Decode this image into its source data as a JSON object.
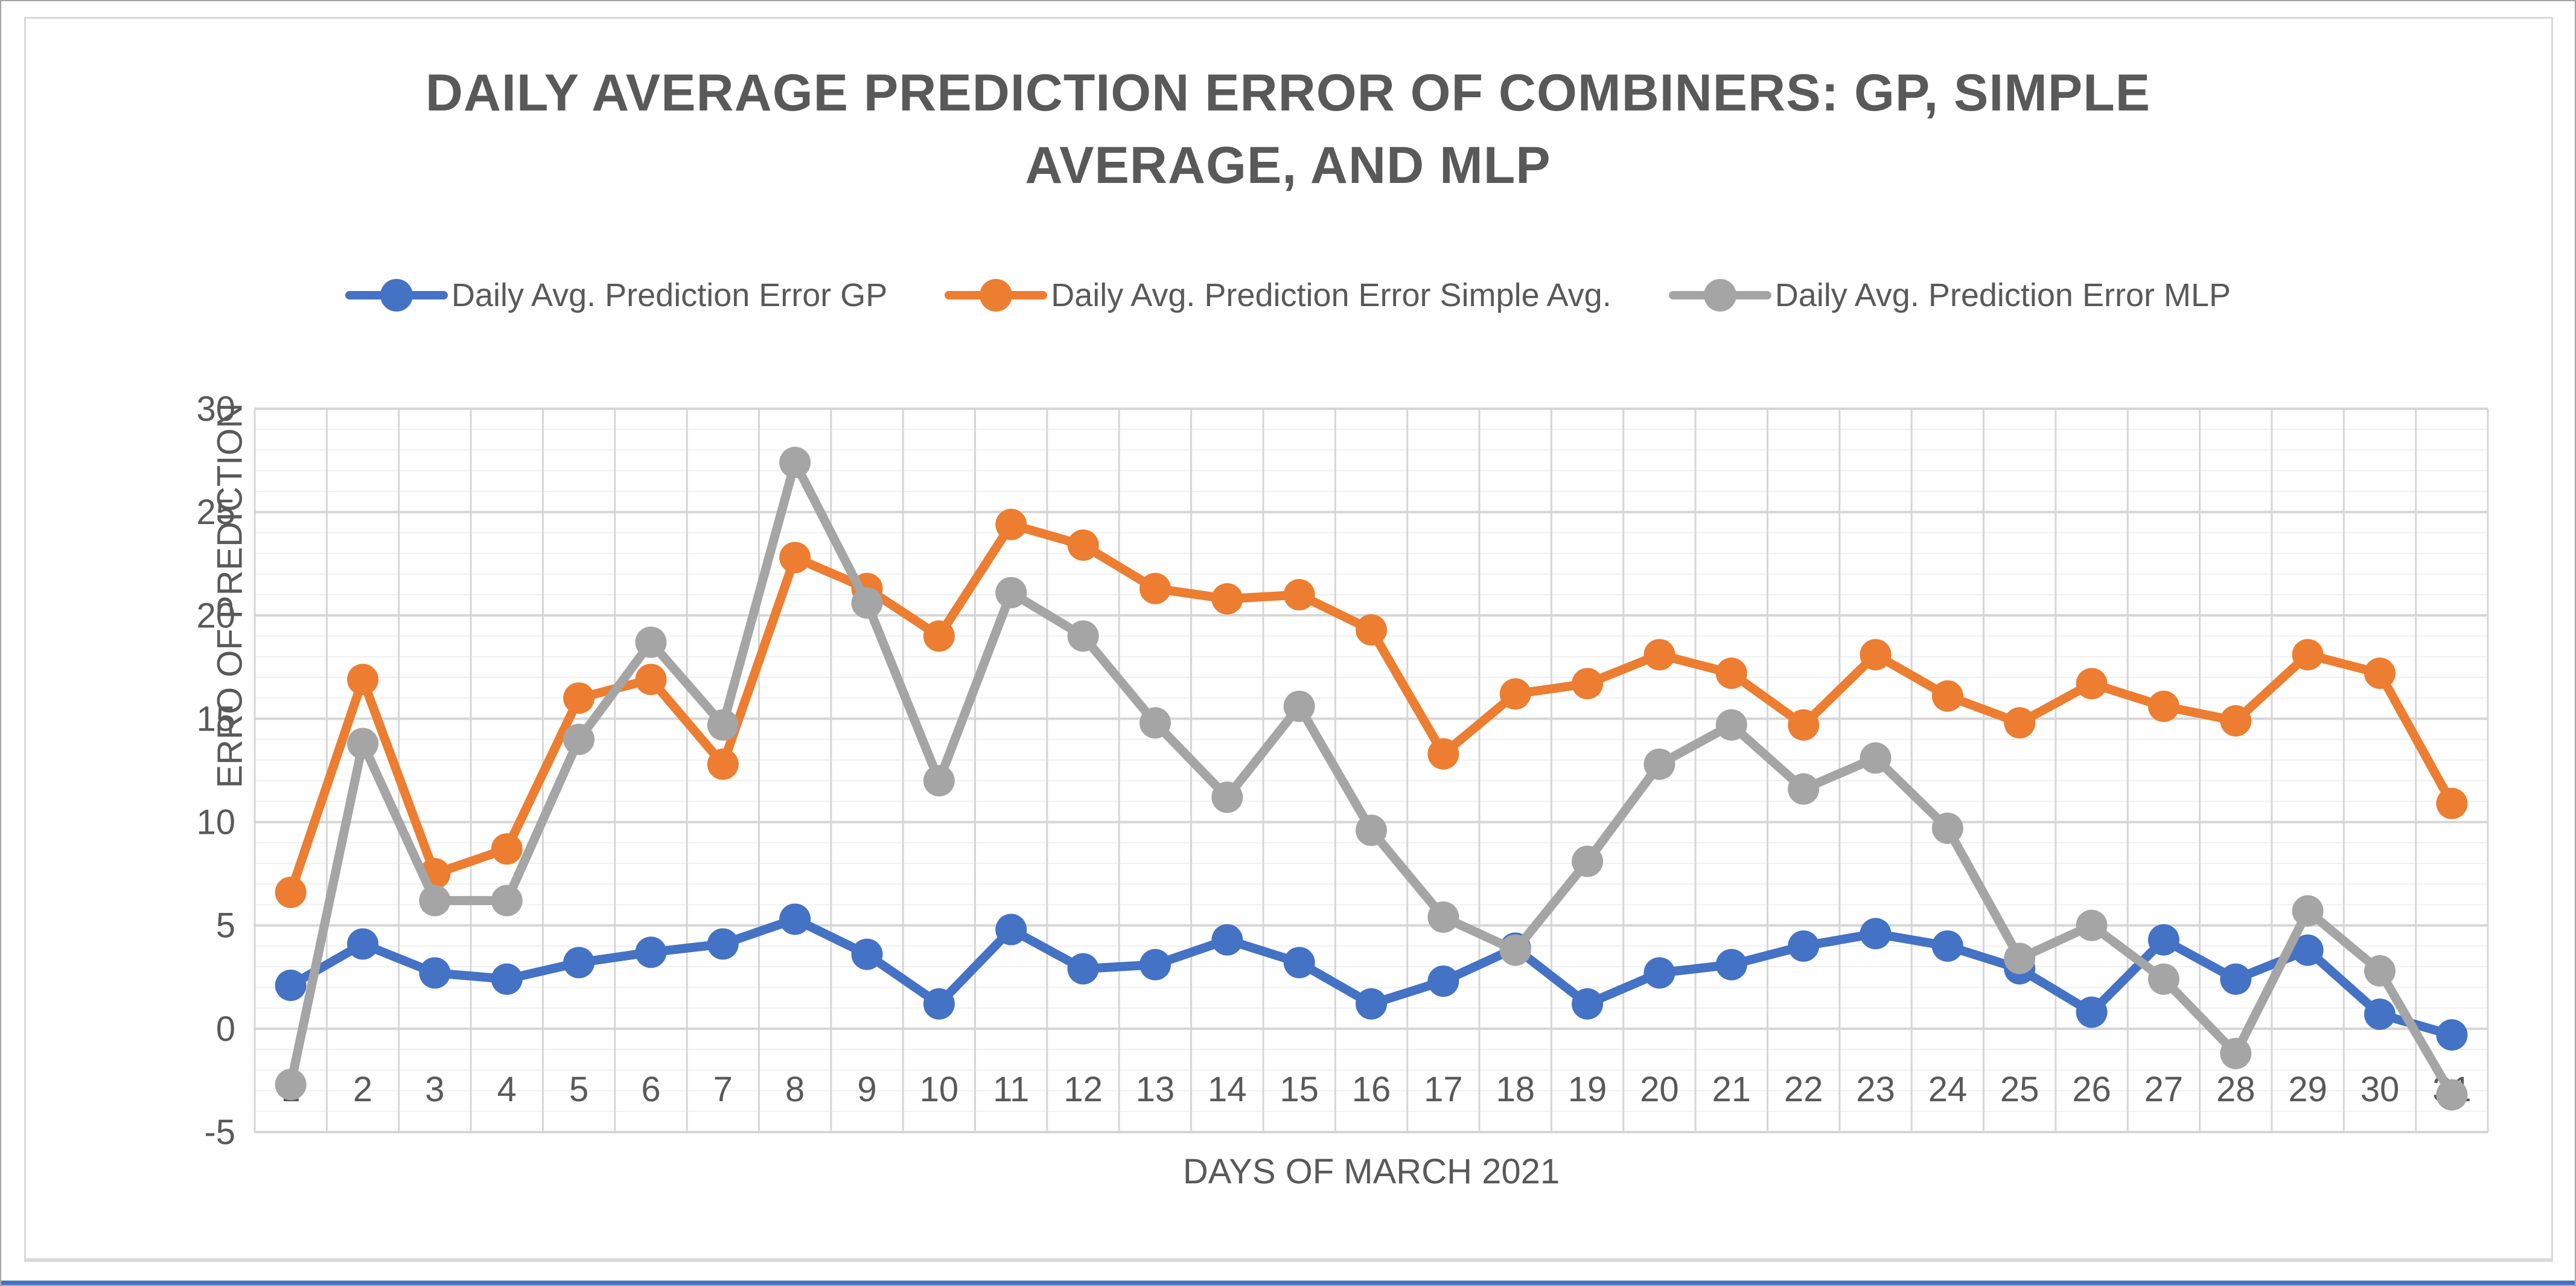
{
  "page": {
    "background": "#ffffff",
    "outer_border_color": "#a6a6a6",
    "frame_border_color": "#d9d9d9",
    "bottom_strip_color": "#4472c4",
    "text_color": "#595959"
  },
  "chart_data": {
    "type": "line",
    "title": "DAILY AVERAGE PREDICTION ERROR OF COMBINERS: GP, SIMPLE AVERAGE, AND MLP",
    "xlabel": "DAYS OF MARCH 2021",
    "ylabel": "ERRO OF PREDICTION",
    "x": [
      1,
      2,
      3,
      4,
      5,
      6,
      7,
      8,
      9,
      10,
      11,
      12,
      13,
      14,
      15,
      16,
      17,
      18,
      19,
      20,
      21,
      22,
      23,
      24,
      25,
      26,
      27,
      28,
      29,
      30,
      31
    ],
    "ylim": [
      -5,
      30
    ],
    "yticks": [
      30,
      25,
      20,
      15,
      10,
      5,
      0,
      -5
    ],
    "ytick_minor_step": 1,
    "grid": true,
    "legend_position": "top",
    "gridline_major_color": "#d6d6d6",
    "gridline_minor_color": "#f0f0f0",
    "tick_label_color": "#595959",
    "series": [
      {
        "name": "Daily Avg. Prediction Error GP",
        "color": "#4472C4",
        "values": [
          2.1,
          4.1,
          2.7,
          2.4,
          3.2,
          3.7,
          4.1,
          5.3,
          3.6,
          1.2,
          4.8,
          2.9,
          3.1,
          4.3,
          3.2,
          1.2,
          2.3,
          3.9,
          1.2,
          2.7,
          3.1,
          4.0,
          4.6,
          4.0,
          2.9,
          0.8,
          4.3,
          2.4,
          3.8,
          0.7,
          -0.3
        ]
      },
      {
        "name": "Daily Avg. Prediction Error Simple Avg.",
        "color": "#ED7D31",
        "values": [
          6.6,
          16.9,
          7.5,
          8.7,
          16.0,
          16.9,
          12.8,
          22.8,
          21.3,
          19.0,
          24.4,
          23.4,
          21.3,
          20.8,
          21.0,
          19.3,
          13.3,
          16.2,
          16.7,
          18.1,
          17.2,
          14.7,
          18.1,
          16.1,
          14.8,
          16.7,
          15.6,
          14.9,
          18.1,
          17.2,
          10.9
        ]
      },
      {
        "name": "Daily Avg. Prediction Error MLP",
        "color": "#A5A5A5",
        "values": [
          -2.7,
          13.8,
          6.2,
          6.2,
          14.0,
          18.7,
          14.7,
          27.4,
          20.6,
          12.0,
          21.1,
          19.0,
          14.8,
          11.2,
          15.6,
          9.6,
          5.4,
          3.8,
          8.1,
          12.8,
          14.7,
          11.6,
          13.1,
          9.7,
          3.4,
          5.0,
          2.4,
          -1.2,
          5.7,
          2.8,
          -3.2
        ]
      }
    ]
  }
}
